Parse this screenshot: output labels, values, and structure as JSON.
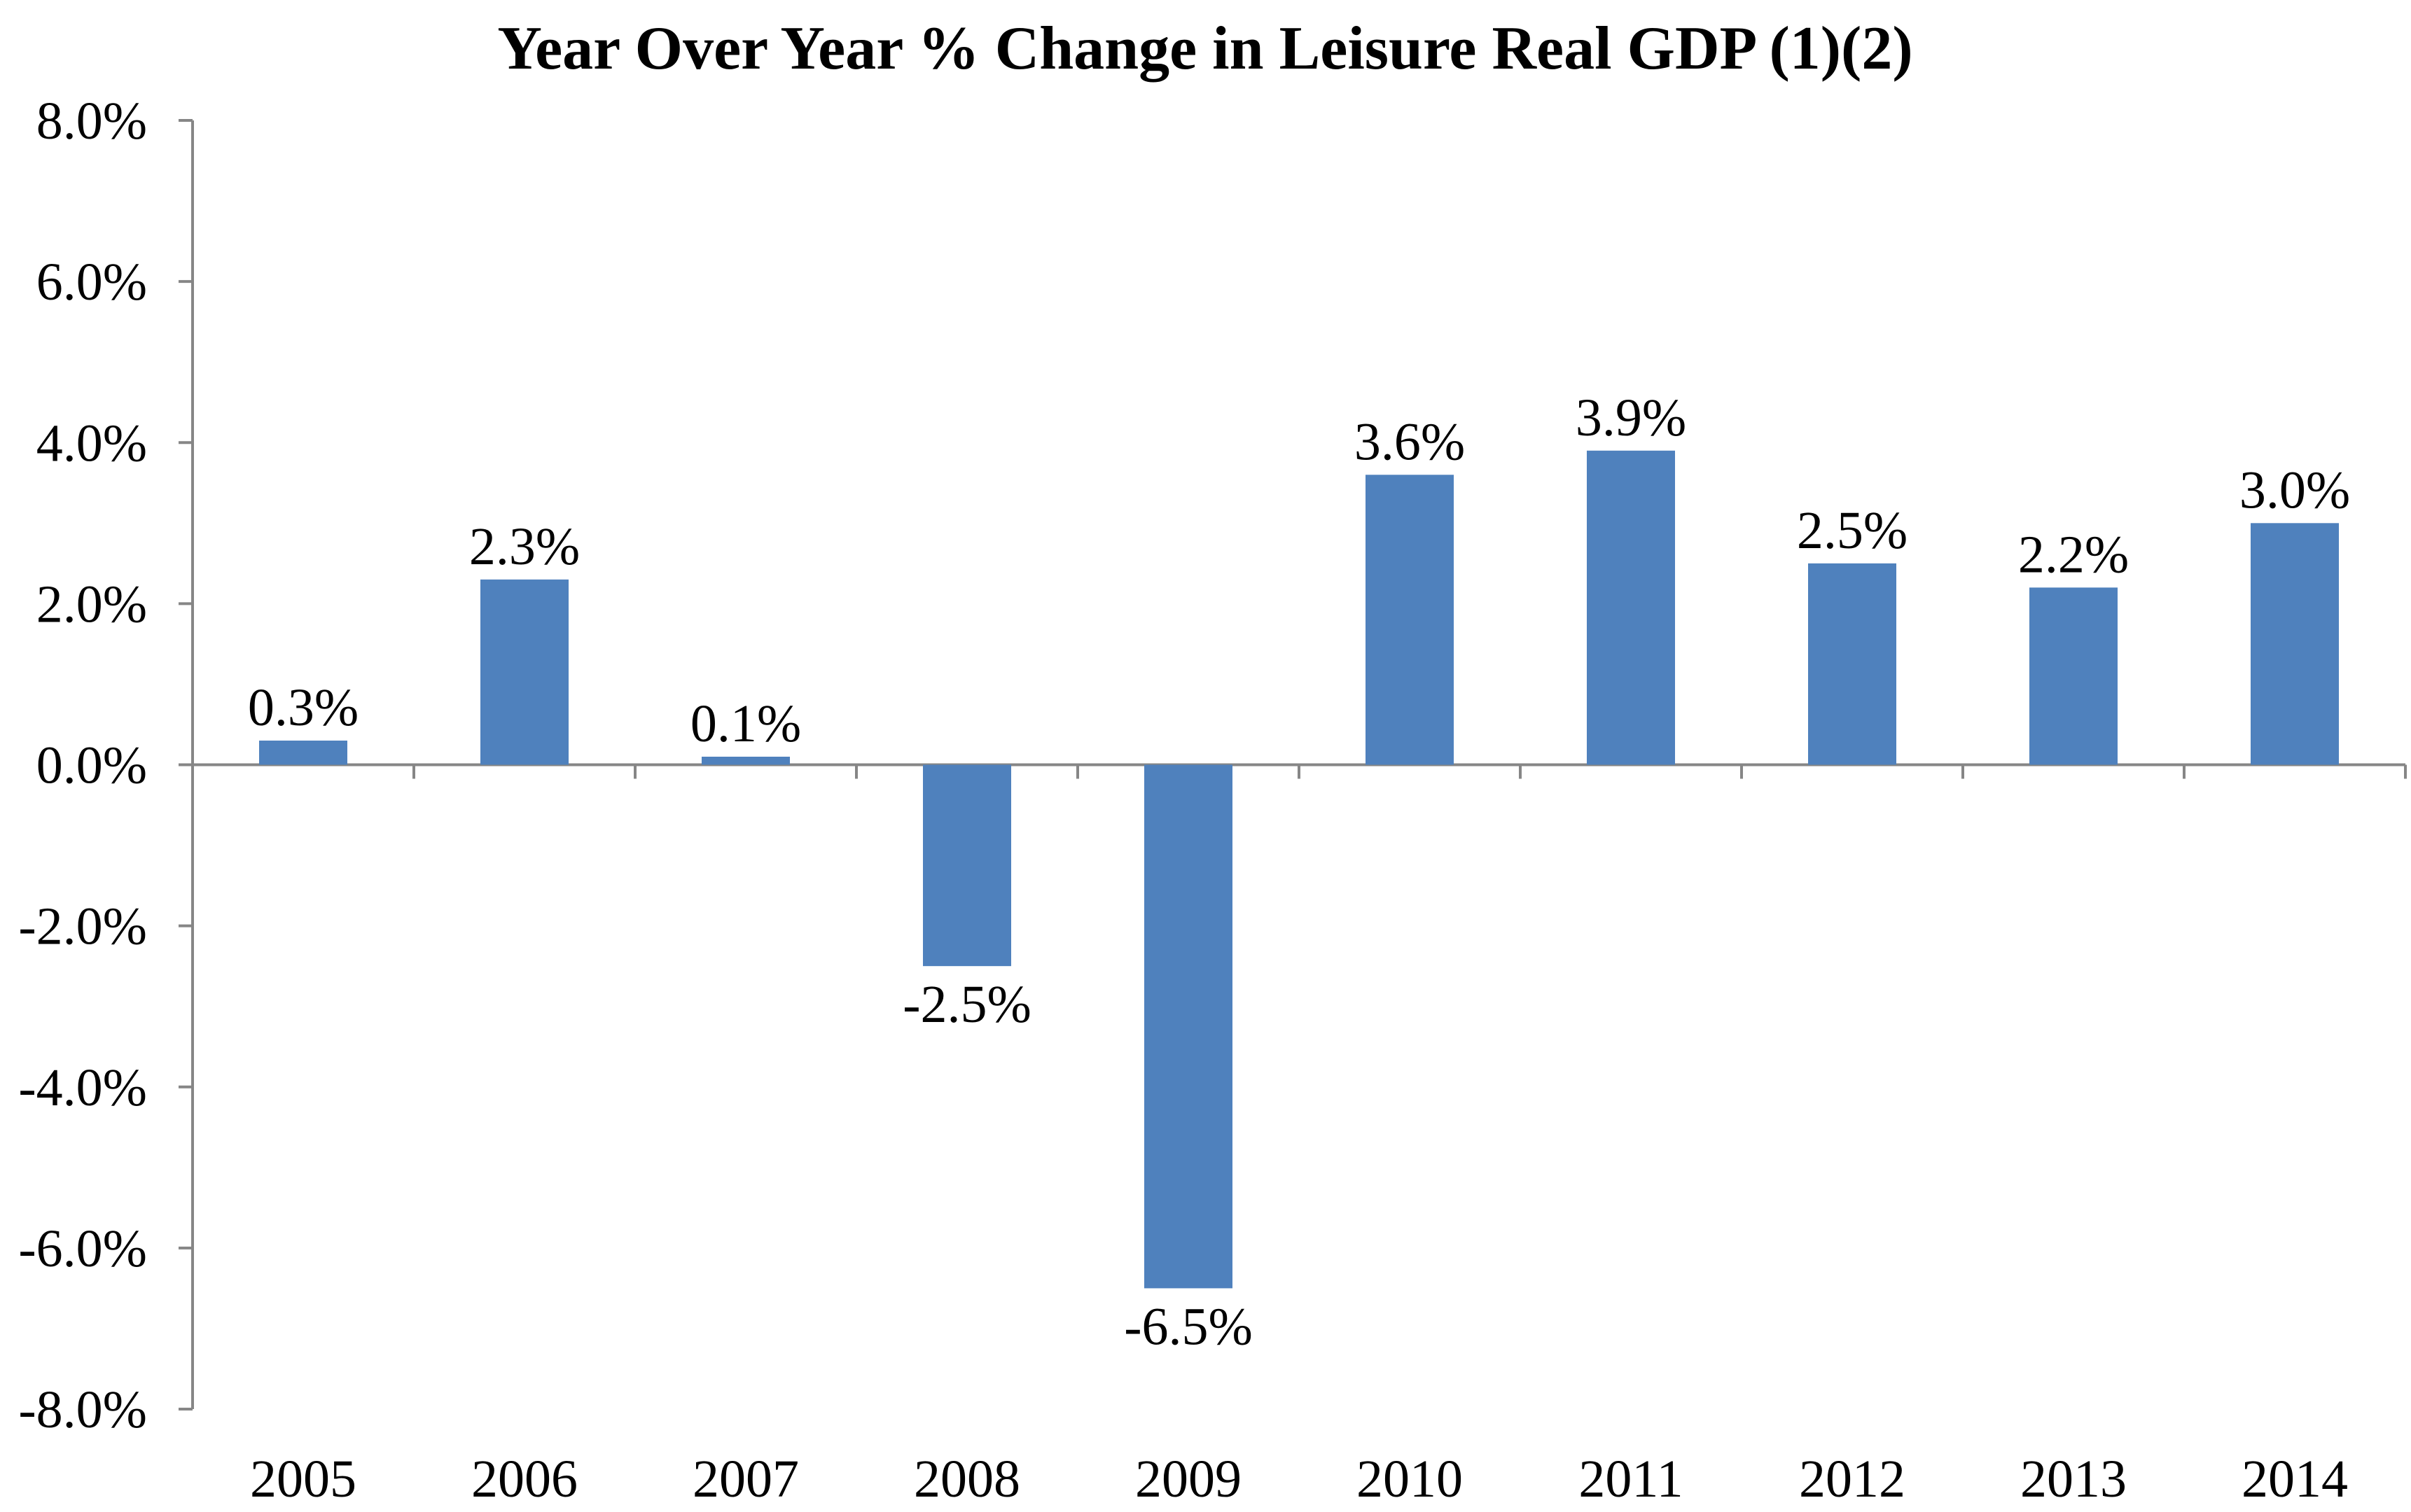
{
  "chart_data": {
    "type": "bar",
    "title": "Year Over Year % Change in Leisure Real GDP (1)(2)",
    "xlabel": "",
    "ylabel": "",
    "categories": [
      "2005",
      "2006",
      "2007",
      "2008",
      "2009",
      "2010",
      "2011",
      "2012",
      "2013",
      "2014"
    ],
    "values": [
      0.3,
      2.3,
      0.1,
      -2.5,
      -6.5,
      3.6,
      3.9,
      2.5,
      2.2,
      3.0
    ],
    "data_labels": [
      "0.3%",
      "2.3%",
      "0.1%",
      "-2.5%",
      "-6.5%",
      "3.6%",
      "3.9%",
      "2.5%",
      "2.2%",
      "3.0%"
    ],
    "ylim": [
      -8,
      8
    ],
    "yticks": [
      8,
      6,
      4,
      2,
      0,
      -2,
      -4,
      -6,
      -8
    ],
    "ytick_labels": [
      "8.0%",
      "6.0%",
      "4.0%",
      "2.0%",
      "0.0%",
      "-2.0%",
      "-4.0%",
      "-6.0%",
      "-8.0%"
    ],
    "grid": false,
    "legend": "none",
    "colors": {
      "bar": "#4F81BD",
      "axis": "#868686"
    }
  }
}
